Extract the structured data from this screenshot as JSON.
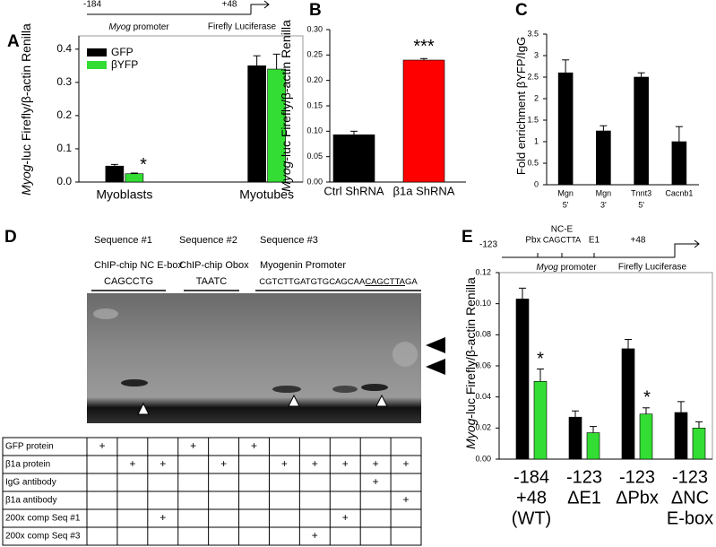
{
  "chart_data": [
    {
      "type": "bar",
      "panel_label": "A",
      "ylabel_italic": "Myog",
      "ylabel": "-luc Firefly/β-actin Renilla",
      "promoter_diagram": {
        "start": "-184",
        "end": "+48",
        "promoter_italic": "Myog",
        "promoter": " promoter",
        "reporter": "Firefly Luciferase"
      },
      "categories": [
        "Myoblasts",
        "Myotubes"
      ],
      "series": [
        {
          "name": "GFP",
          "color": "#000000",
          "values": [
            0.048,
            0.35
          ],
          "errors": [
            0.005,
            0.03
          ]
        },
        {
          "name": "βYFP",
          "color": "#33dd33",
          "values": [
            0.025,
            0.34
          ],
          "errors": [
            0.002,
            0.045
          ]
        }
      ],
      "ylim": [
        0,
        0.44
      ],
      "yticks": [
        {
          "value": 0,
          "label": "0.0"
        },
        0.1,
        0.2,
        0.3,
        0.4
      ],
      "legend": "upper left",
      "annotations": [
        "*"
      ]
    },
    {
      "type": "bar",
      "panel_label": "B",
      "ylabel_italic": "Myog",
      "ylabel": "-luc Firefly/β-actin Renilla",
      "categories": [
        "Ctrl ShRNA",
        "β1a ShRNA"
      ],
      "series": [
        {
          "colors": [
            "#000000",
            "#ff0000"
          ],
          "values": [
            0.093,
            0.24
          ],
          "errors": [
            0.007,
            0.003
          ]
        }
      ],
      "ylim": [
        0,
        0.3
      ],
      "yticks": [
        {
          "value": 0,
          "label": "0.00"
        },
        {
          "value": 0.05,
          "label": "0.05"
        },
        {
          "value": 0.1,
          "label": "0.10"
        },
        {
          "value": 0.15,
          "label": "0.15"
        },
        {
          "value": 0.2,
          "label": "0.20"
        },
        {
          "value": 0.25,
          "label": "0.25"
        },
        {
          "value": 0.3,
          "label": "0.30"
        }
      ],
      "annotations": [
        "***"
      ]
    },
    {
      "type": "bar",
      "panel_label": "C",
      "ylabel": "Fold enrichment βYFP/IgG",
      "categories": [
        [
          "Mgn",
          "5'"
        ],
        [
          "Mgn",
          "3'"
        ],
        [
          "Tnnt3",
          "5'"
        ],
        [
          "Cacnb1"
        ]
      ],
      "series": [
        {
          "color": "#000000",
          "values": [
            2.6,
            1.25,
            2.5,
            1.0
          ],
          "errors": [
            0.3,
            0.12,
            0.1,
            0.35
          ]
        }
      ],
      "ylim": [
        0,
        3.5
      ],
      "yticks": [
        0,
        0.5,
        1,
        1.5,
        2,
        2.5,
        3,
        3.5
      ]
    },
    {
      "type": "bar",
      "panel_label": "E",
      "ylabel_italic": "Myog",
      "ylabel": "-luc Firefly/β-actin Renilla",
      "promoter_diagram": {
        "start": "-123",
        "pbx": "Pbx",
        "nce": "NC-E",
        "nce_seq": "CAGCTTA",
        "e1": "E1",
        "end": "+48",
        "promoter_italic": "Myog",
        "promoter": " promoter",
        "reporter": "Firefly Luciferase"
      },
      "categories": [
        [
          "-184",
          "+48",
          "(WT)"
        ],
        [
          "-123",
          "ΔE1"
        ],
        [
          "-123",
          "ΔPbx"
        ],
        [
          "-123",
          "ΔNC",
          "E-box"
        ]
      ],
      "series": [
        {
          "color": "#000000",
          "values": [
            0.103,
            0.027,
            0.071,
            0.03
          ],
          "errors": [
            0.007,
            0.004,
            0.006,
            0.007
          ]
        },
        {
          "color": "#33dd33",
          "values": [
            0.05,
            0.017,
            0.029,
            0.02
          ],
          "errors": [
            0.008,
            0.004,
            0.004,
            0.004
          ]
        }
      ],
      "ylim": [
        0,
        0.12
      ],
      "yticks": [
        {
          "value": 0,
          "label": "0.00"
        },
        {
          "value": 0.02,
          "label": "0.02"
        },
        {
          "value": 0.04,
          "label": "0.04"
        },
        {
          "value": 0.06,
          "label": "0.06"
        },
        {
          "value": 0.08,
          "label": "0.08"
        },
        {
          "value": 0.1,
          "label": "0.10"
        },
        {
          "value": 0.12,
          "label": "0.12"
        }
      ],
      "annotations": [
        "*",
        "*"
      ]
    }
  ],
  "panel_d": {
    "panel_label": "D",
    "sequences": [
      {
        "name": "Sequence #1",
        "source": "ChIP-chip NC E-box",
        "seq": [
          "CAGCCTG"
        ]
      },
      {
        "name": "Sequence #2",
        "source": "ChIP-chip Obox",
        "seq": [
          "TAATC"
        ]
      },
      {
        "name": "Sequence #3",
        "source": "Myogenin Promoter",
        "seq": [
          "CGTCTTGATGTGCAGCAA",
          "CAGCTTA",
          "GA"
        ]
      }
    ],
    "table": {
      "rows": [
        {
          "label": "GFP protein",
          "cells": [
            "+",
            null,
            null,
            "+",
            null,
            "+",
            null,
            null,
            null,
            null,
            null
          ]
        },
        {
          "label": "β1a protein",
          "cells": [
            null,
            "+",
            "+",
            null,
            "+",
            null,
            "+",
            "+",
            "+",
            "+",
            "+"
          ]
        },
        {
          "label": "IgG antibody",
          "cells": [
            null,
            null,
            null,
            null,
            null,
            null,
            null,
            null,
            null,
            "+",
            null
          ]
        },
        {
          "label": "β1a antibody",
          "cells": [
            null,
            null,
            null,
            null,
            null,
            null,
            null,
            null,
            null,
            null,
            "+"
          ]
        },
        {
          "label": "200x comp Seq #1",
          "cells": [
            null,
            null,
            "+",
            null,
            null,
            null,
            null,
            null,
            "+",
            null,
            null
          ]
        },
        {
          "label": "200x comp Seq #3",
          "cells": [
            null,
            null,
            null,
            null,
            null,
            null,
            null,
            "+",
            null,
            null,
            null
          ]
        }
      ]
    }
  }
}
